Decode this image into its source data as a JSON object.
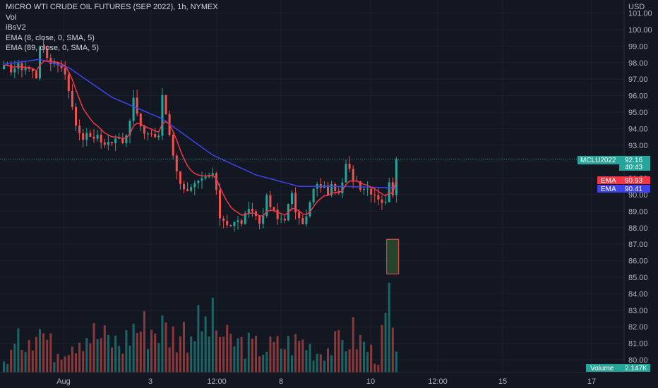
{
  "legend": {
    "title": "MICRO WTI CRUDE OIL FUTURES (SEP 2022), 1h, NYMEX",
    "vol": "Vol",
    "ibs": "iBsV2",
    "ema8": "EMA (8, close, 0, SMA, 5)",
    "ema89": "EMA (89, close, 0, SMA, 5)"
  },
  "axis": {
    "currency": "USD",
    "y_ticks": [
      "101.00",
      "100.00",
      "99.00",
      "98.00",
      "97.00",
      "96.00",
      "95.00",
      "94.00",
      "93.00",
      "92.00",
      "91.00",
      "90.00",
      "89.00",
      "88.00",
      "87.00",
      "86.00",
      "85.00",
      "84.00",
      "83.00",
      "82.00",
      "81.00",
      "80.00"
    ],
    "x_ticks": [
      "Aug",
      "3",
      "12:00",
      "8",
      "10",
      "12:00",
      "15",
      "17"
    ]
  },
  "tags": {
    "symbol": "MCLU2022",
    "price": "92.16",
    "countdown": "40:43",
    "ema_fast_label": "EMA",
    "ema_fast_value": "90.93",
    "ema_slow_label": "EMA",
    "ema_slow_value": "90.41",
    "volume_label": "Volume",
    "volume_value": "2.147K"
  },
  "colors": {
    "background": "#131722",
    "up": "#26a69a",
    "down": "#ef5350",
    "ema_fast": "#f23645",
    "ema_slow": "#3f43ea",
    "grid": "#1e222d"
  },
  "chart_data": {
    "type": "candlestick",
    "title": "MICRO WTI CRUDE OIL FUTURES (SEP 2022), 1h, NYMEX",
    "interval": "1h",
    "ylim": [
      79.6,
      101.3
    ],
    "last_price": 92.16,
    "close_path": [
      [
        0,
        97.6
      ],
      [
        6,
        97.8
      ],
      [
        9,
        97.2
      ],
      [
        10,
        99.2
      ],
      [
        11,
        98.6
      ],
      [
        13,
        98.1
      ],
      [
        16,
        97.9
      ],
      [
        18,
        96.4
      ],
      [
        21,
        93.5
      ],
      [
        26,
        93.6
      ],
      [
        28,
        92.9
      ],
      [
        31,
        93.6
      ],
      [
        34,
        93.3
      ],
      [
        36,
        95.8
      ],
      [
        38,
        93.9
      ],
      [
        41,
        93.7
      ],
      [
        43,
        93.4
      ],
      [
        44,
        96.1
      ],
      [
        46,
        93.8
      ],
      [
        48,
        91.3
      ],
      [
        51,
        90.1
      ],
      [
        55,
        90.8
      ],
      [
        58,
        91.3
      ],
      [
        60,
        88.7
      ],
      [
        63,
        88.2
      ],
      [
        66,
        88.4
      ],
      [
        69,
        89.1
      ],
      [
        71,
        88.3
      ],
      [
        73,
        89.7
      ],
      [
        76,
        88.5
      ],
      [
        78,
        88.7
      ],
      [
        80,
        89.9
      ],
      [
        82,
        88.3
      ],
      [
        84,
        88.6
      ],
      [
        86,
        90.3
      ],
      [
        88,
        90.6
      ],
      [
        90,
        90.2
      ],
      [
        92,
        90.5
      ],
      [
        93,
        89.8
      ],
      [
        95,
        91.7
      ],
      [
        97,
        91.1
      ],
      [
        99,
        90.6
      ],
      [
        102,
        90.3
      ],
      [
        104,
        89.9
      ],
      [
        106,
        89.4
      ],
      [
        107,
        91.0
      ],
      [
        108,
        90.2
      ],
      [
        109,
        92.16
      ]
    ],
    "ema_fast": {
      "name": "EMA (8, close, 0, SMA, 5)",
      "last": 90.93
    },
    "ema_slow": {
      "name": "EMA (89, close, 0, SMA, 5)",
      "last": 90.41,
      "path": [
        [
          0,
          97.9
        ],
        [
          10,
          98.2
        ],
        [
          18,
          97.7
        ],
        [
          30,
          95.9
        ],
        [
          44,
          94.6
        ],
        [
          58,
          92.4
        ],
        [
          70,
          91.2
        ],
        [
          82,
          90.5
        ],
        [
          95,
          90.5
        ],
        [
          109,
          90.41
        ]
      ]
    },
    "volume_last": 2147,
    "volume_profile": [
      [
        0,
        0.15
      ],
      [
        9,
        0.75
      ],
      [
        14,
        0.3
      ],
      [
        22,
        0.6
      ],
      [
        33,
        0.4
      ],
      [
        36,
        0.65
      ],
      [
        44,
        0.65
      ],
      [
        47,
        0.55
      ],
      [
        58,
        0.7
      ],
      [
        62,
        0.45
      ],
      [
        72,
        0.35
      ],
      [
        83,
        0.45
      ],
      [
        87,
        0.3
      ],
      [
        95,
        0.45
      ],
      [
        97,
        0.55
      ],
      [
        104,
        0.2
      ],
      [
        107,
        0.95
      ],
      [
        109,
        0.2
      ]
    ]
  }
}
